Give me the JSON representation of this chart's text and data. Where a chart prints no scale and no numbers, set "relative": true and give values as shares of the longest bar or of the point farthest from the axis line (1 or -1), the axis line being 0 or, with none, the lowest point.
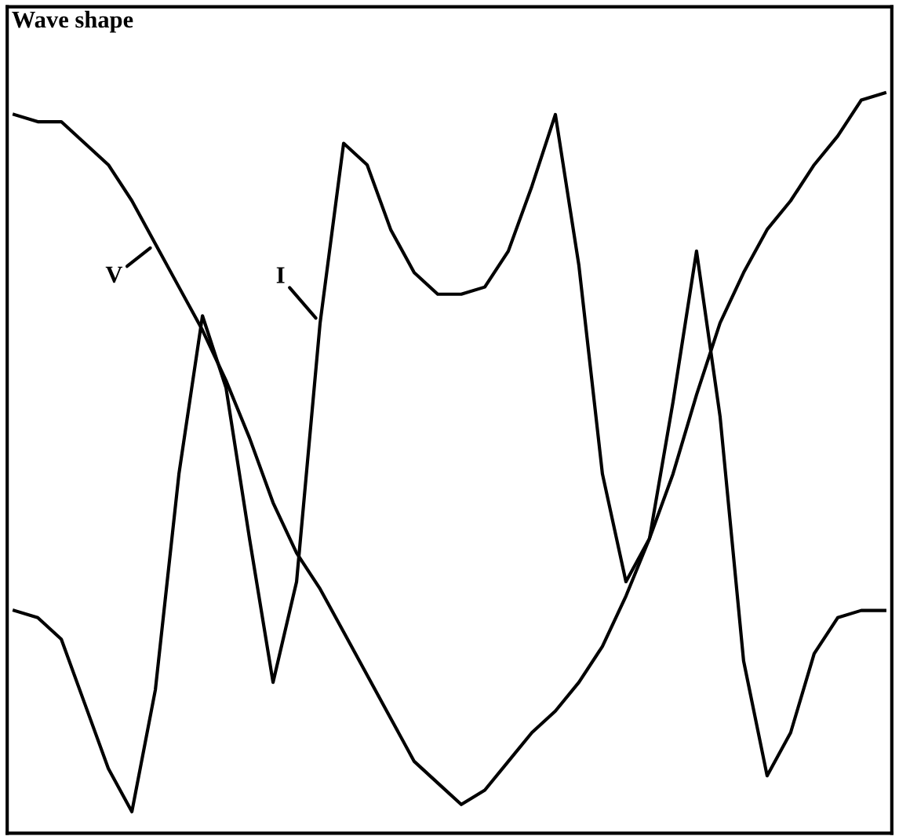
{
  "chart_data": {
    "type": "line",
    "title": "Wave shape",
    "relative": true,
    "marker": "none",
    "line_style": "solid",
    "categories": [
      null,
      null,
      null,
      null,
      null,
      null,
      null,
      null,
      null,
      null,
      null,
      null,
      null,
      null,
      null,
      null,
      null,
      null,
      null,
      null,
      null,
      null,
      null,
      null,
      null,
      null,
      null,
      null,
      null,
      null,
      null,
      null,
      null,
      null,
      null,
      null,
      null,
      null
    ],
    "series": [
      {
        "name": "V",
        "color": "#000000",
        "values": [
          0.97,
          0.96,
          0.96,
          0.93,
          0.9,
          0.85,
          0.79,
          0.73,
          0.67,
          0.6,
          0.52,
          0.43,
          0.36,
          0.31,
          0.25,
          0.19,
          0.13,
          0.07,
          0.04,
          0.01,
          0.03,
          0.07,
          0.11,
          0.14,
          0.18,
          0.23,
          0.3,
          0.38,
          0.47,
          0.58,
          0.68,
          0.75,
          0.81,
          0.85,
          0.9,
          0.94,
          0.99,
          1.0
        ]
      },
      {
        "name": "I",
        "color": "#000000",
        "values": [
          0.28,
          0.27,
          0.24,
          0.15,
          0.06,
          0,
          0.17,
          0.47,
          0.69,
          0.59,
          0.38,
          0.18,
          0.32,
          0.68,
          0.93,
          0.9,
          0.81,
          0.75,
          0.72,
          0.72,
          0.73,
          0.78,
          0.87,
          0.97,
          0.76,
          0.47,
          0.32,
          0.38,
          0.57,
          0.78,
          0.55,
          0.21,
          0.05,
          0.11,
          0.22,
          0.27,
          0.28,
          0.28
        ]
      }
    ]
  }
}
